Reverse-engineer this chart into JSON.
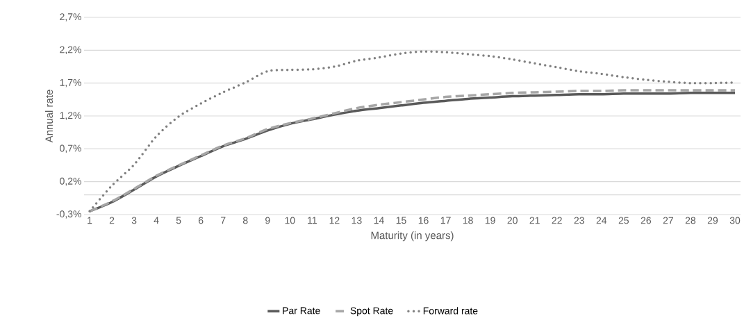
{
  "chart_data": {
    "type": "line",
    "xlabel": "Maturity (in years)",
    "ylabel": "Annual rate",
    "categories": [
      "1",
      "2",
      "3",
      "4",
      "5",
      "6",
      "7",
      "8",
      "9",
      "10",
      "11",
      "12",
      "13",
      "14",
      "15",
      "16",
      "17",
      "18",
      "19",
      "20",
      "21",
      "22",
      "23",
      "24",
      "25",
      "26",
      "27",
      "28",
      "29",
      "30"
    ],
    "series": [
      {
        "name": "Par Rate",
        "color": "#595959",
        "line_style": "solid",
        "values": [
          -0.25,
          -0.11,
          0.08,
          0.28,
          0.44,
          0.59,
          0.74,
          0.85,
          0.98,
          1.08,
          1.15,
          1.22,
          1.28,
          1.32,
          1.36,
          1.4,
          1.43,
          1.46,
          1.48,
          1.5,
          1.51,
          1.52,
          1.53,
          1.53,
          1.54,
          1.54,
          1.54,
          1.55,
          1.55,
          1.55
        ]
      },
      {
        "name": "Spot Rate",
        "color": "#a6a6a6",
        "line_style": "dashed",
        "values": [
          -0.25,
          -0.1,
          0.09,
          0.29,
          0.45,
          0.6,
          0.75,
          0.86,
          1.0,
          1.09,
          1.16,
          1.24,
          1.32,
          1.37,
          1.41,
          1.45,
          1.49,
          1.51,
          1.53,
          1.55,
          1.56,
          1.57,
          1.58,
          1.58,
          1.59,
          1.59,
          1.59,
          1.59,
          1.59,
          1.59
        ]
      },
      {
        "name": "Forward rate",
        "color": "#808080",
        "line_style": "dotted",
        "values": [
          -0.25,
          0.14,
          0.46,
          0.89,
          1.19,
          1.39,
          1.56,
          1.71,
          1.88,
          1.9,
          1.91,
          1.95,
          2.04,
          2.09,
          2.15,
          2.18,
          2.17,
          2.14,
          2.11,
          2.06,
          2.0,
          1.94,
          1.88,
          1.84,
          1.79,
          1.75,
          1.72,
          1.7,
          1.7,
          1.71
        ]
      }
    ],
    "ylim": [
      -0.3,
      2.7
    ],
    "yticks": [
      {
        "value": -0.3,
        "label": "-0,3%"
      },
      {
        "value": 0.2,
        "label": "0,2%"
      },
      {
        "value": 0.7,
        "label": "0,7%"
      },
      {
        "value": 1.2,
        "label": "1,2%"
      },
      {
        "value": 1.7,
        "label": "1,7%"
      },
      {
        "value": 2.2,
        "label": "2,2%"
      },
      {
        "value": 2.7,
        "label": "2,7%"
      }
    ],
    "ref_lines": [
      {
        "axis": "y",
        "value": 0,
        "color": "#d9d9d9"
      }
    ],
    "grid": "y",
    "legend": "bottom",
    "marker": "none"
  }
}
